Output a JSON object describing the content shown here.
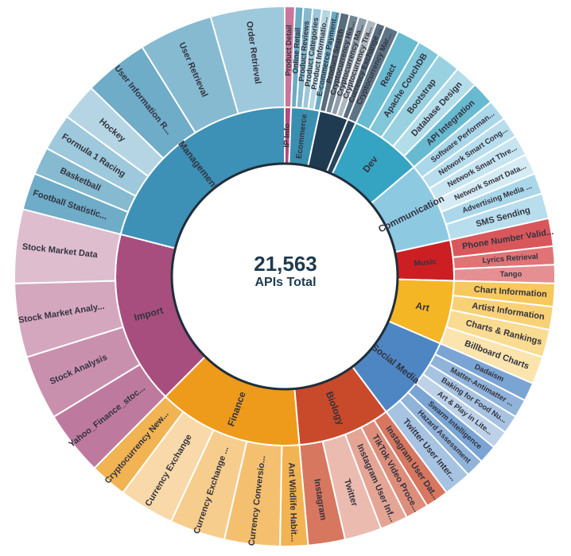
{
  "center": {
    "total": "21,563",
    "label": "APIs Total"
  },
  "chart_data": {
    "type": "sunburst",
    "categories": [
      {
        "name": "IP Info",
        "color": "#b5487c",
        "value": 2.2,
        "children": [
          {
            "name": "Product Detail",
            "value": 2.2
          }
        ]
      },
      {
        "name": "Ecommerce",
        "color": "#3a8fb0",
        "value": 9.8,
        "children": [
          {
            "name": "Online Retail",
            "value": 1.8
          },
          {
            "name": "Product Reviews",
            "value": 2.0
          },
          {
            "name": "Product Categories",
            "value": 2.0
          },
          {
            "name": "Product Informatio...",
            "value": 2.0
          },
          {
            "name": "E-commerce Payment...",
            "value": 2.0
          }
        ]
      },
      {
        "name": "",
        "color": "#1f3b52",
        "value": 10.0,
        "children": [
          {
            "name": "Product Search",
            "value": 2.0
          },
          {
            "name": "Cryptocurrency His...",
            "value": 2.0
          },
          {
            "name": "Cryptocurrency Ma...",
            "value": 2.0
          },
          {
            "name": "Cryptocurrency Tra...",
            "value": 2.0
          },
          {
            "name": "Currency Exchange ...",
            "value": 2.0
          }
        ]
      },
      {
        "name": "",
        "color": "#27465e",
        "value": 3.0,
        "children": [
          {
            "name": "Cryptocurrency Mar...",
            "value": 3.0
          }
        ]
      },
      {
        "name": "Dev",
        "color": "#35a3c2",
        "value": 25.0,
        "children": [
          {
            "name": "React",
            "value": 5.0
          },
          {
            "name": "Apache CouchDB",
            "value": 5.0
          },
          {
            "name": "Bootstrap",
            "value": 5.0
          },
          {
            "name": "Database Design",
            "value": 5.0
          },
          {
            "name": "API Integration",
            "value": 5.0
          }
        ]
      },
      {
        "name": "Communication",
        "color": "#8ec9e2",
        "value": 28.0,
        "children": [
          {
            "name": "Software Performan...",
            "value": 4.5
          },
          {
            "name": "Network Smart Cong...",
            "value": 4.5
          },
          {
            "name": "Network Smart Thre...",
            "value": 4.5
          },
          {
            "name": "Network Smart Data...",
            "value": 4.5
          },
          {
            "name": "Advertising Media ...",
            "value": 4.5
          },
          {
            "name": "SMS Sending",
            "value": 5.5
          }
        ]
      },
      {
        "name": "Music",
        "color": "#cc1f24",
        "value": 14.0,
        "children": [
          {
            "name": "Phone Number Valid...",
            "value": 6.0
          },
          {
            "name": "Lyrics Retrieval",
            "value": 4.0
          },
          {
            "name": "Tango",
            "value": 4.0
          }
        ]
      },
      {
        "name": "Art",
        "color": "#f4b625",
        "value": 22.0,
        "children": [
          {
            "name": "Chart Information",
            "value": 5.0
          },
          {
            "name": "Artist Information",
            "value": 5.0
          },
          {
            "name": "Charts & Rankings",
            "value": 6.0
          },
          {
            "name": "Billboard Charts",
            "value": 6.0
          }
        ]
      },
      {
        "name": "Social Media",
        "color": "#4e86c4",
        "value": 30.0,
        "children": [
          {
            "name": "Dadaism",
            "value": 4.0
          },
          {
            "name": "Matter-Antimatter ...",
            "value": 4.0
          },
          {
            "name": "Baking for Food Nu...",
            "value": 4.0
          },
          {
            "name": "Art & Play in Lite...",
            "value": 4.0
          },
          {
            "name": "Swarm Intelligence",
            "value": 4.0
          },
          {
            "name": "Hazard Assessment",
            "value": 4.0
          },
          {
            "name": "Twitter User Inter...",
            "value": 6.0
          }
        ]
      },
      {
        "name": "Biology",
        "color": "#c94a2b",
        "value": 32.0,
        "children": [
          {
            "name": "Instagram User Dat...",
            "value": 5.0
          },
          {
            "name": "TikTok Video Proce...",
            "value": 5.0
          },
          {
            "name": "Instagram User Inf...",
            "value": 6.0
          },
          {
            "name": "Twitter",
            "value": 8.0
          },
          {
            "name": "Instagram",
            "value": 8.0
          }
        ]
      },
      {
        "name": "Finance",
        "color": "#ee9a1a",
        "value": 50.0,
        "children": [
          {
            "name": "Ant Wildlife Habit...",
            "value": 6.0
          },
          {
            "name": "Currency Conversio...",
            "value": 12.0
          },
          {
            "name": "Currency Exchange ...",
            "value": 12.0
          },
          {
            "name": "Currency Exchange",
            "value": 12.0
          },
          {
            "name": "Cryptocurrency New...",
            "value": 8.0
          }
        ]
      },
      {
        "name": "Import",
        "color": "#a84e7e",
        "value": 60.0,
        "children": [
          {
            "name": "Yahoo_Finance_stoc...",
            "value": 14.0
          },
          {
            "name": "Stock Analysis",
            "value": 14.0
          },
          {
            "name": "Stock Market Analy...",
            "value": 16.0
          },
          {
            "name": "Stock Market Data",
            "value": 16.0
          }
        ]
      },
      {
        "name": "Management",
        "color": "#3d90b6",
        "value": 76.0,
        "children": [
          {
            "name": "Football Statistic...",
            "value": 8.0
          },
          {
            "name": "Basketball",
            "value": 6.0
          },
          {
            "name": "Formula 1 Racing",
            "value": 8.0
          },
          {
            "name": "Hockey",
            "value": 8.0
          },
          {
            "name": "User Information R...",
            "value": 14.0
          },
          {
            "name": "User Retrieval",
            "value": 16.0
          },
          {
            "name": "Order Retrieval",
            "value": 16.0
          }
        ]
      }
    ]
  }
}
